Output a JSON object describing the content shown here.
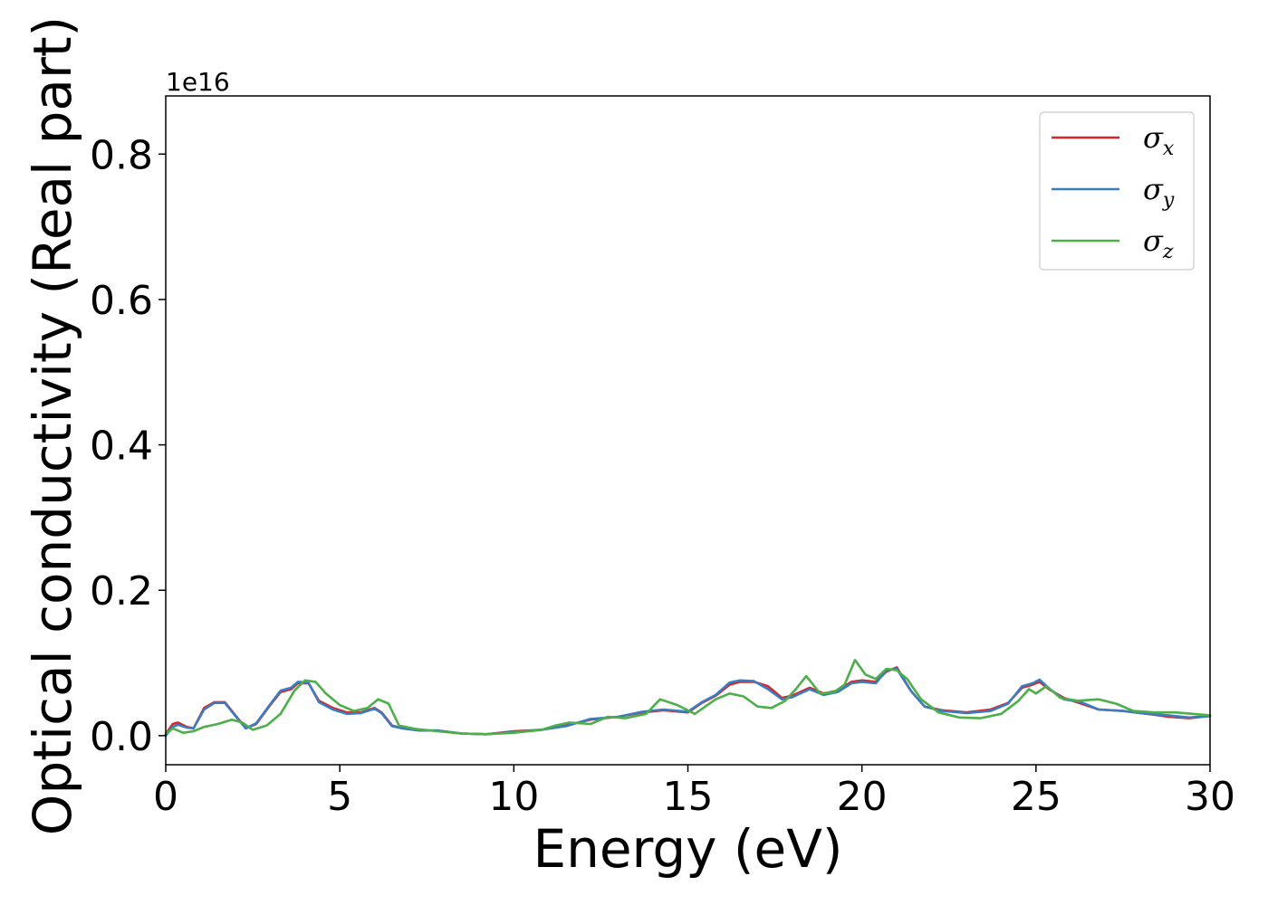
{
  "chart_data": {
    "type": "line",
    "title": "",
    "xlabel": "Energy (eV)",
    "ylabel": "Optical conductivity (Real part)",
    "y_offset_label": "1e16",
    "xlim": [
      0,
      30
    ],
    "ylim": [
      -0.04,
      0.88
    ],
    "x_ticks": [
      0,
      5,
      10,
      15,
      20,
      25,
      30
    ],
    "x_tick_labels": [
      "0",
      "5",
      "10",
      "15",
      "20",
      "25",
      "30"
    ],
    "y_ticks": [
      0.0,
      0.2,
      0.4,
      0.6,
      0.8
    ],
    "y_tick_labels": [
      "0.0",
      "0.2",
      "0.4",
      "0.6",
      "0.8"
    ],
    "grid": false,
    "legend_position": "top-right",
    "series": [
      {
        "name": "σx",
        "legend_base": "σ",
        "legend_sub": "x",
        "color": "#d62728",
        "x": [
          0,
          0.2,
          0.35,
          0.6,
          0.8,
          1.1,
          1.4,
          1.7,
          2.0,
          2.3,
          2.6,
          3.0,
          3.3,
          3.6,
          3.8,
          4.1,
          4.4,
          4.8,
          5.2,
          5.6,
          6.0,
          6.2,
          6.5,
          6.8,
          7.3,
          7.8,
          8.5,
          9.2,
          10.0,
          10.8,
          11.5,
          12.2,
          13.0,
          13.7,
          14.3,
          15.0,
          15.4,
          15.8,
          16.2,
          16.5,
          16.9,
          17.3,
          17.7,
          18.0,
          18.5,
          18.9,
          19.3,
          19.7,
          20.0,
          20.4,
          20.7,
          21.0,
          21.4,
          21.8,
          22.3,
          23.0,
          23.7,
          24.2,
          24.6,
          24.9,
          25.1,
          25.4,
          25.8,
          26.3,
          26.8,
          27.5,
          28.2,
          28.8,
          29.4,
          30.0
        ],
        "y": [
          0.002,
          0.016,
          0.018,
          0.012,
          0.01,
          0.038,
          0.046,
          0.046,
          0.028,
          0.01,
          0.016,
          0.042,
          0.06,
          0.064,
          0.072,
          0.072,
          0.048,
          0.038,
          0.032,
          0.032,
          0.038,
          0.032,
          0.014,
          0.01,
          0.007,
          0.007,
          0.003,
          0.002,
          0.006,
          0.008,
          0.014,
          0.022,
          0.026,
          0.032,
          0.035,
          0.032,
          0.045,
          0.055,
          0.07,
          0.074,
          0.074,
          0.068,
          0.052,
          0.055,
          0.066,
          0.058,
          0.062,
          0.074,
          0.076,
          0.074,
          0.088,
          0.094,
          0.062,
          0.04,
          0.035,
          0.032,
          0.036,
          0.045,
          0.066,
          0.07,
          0.074,
          0.063,
          0.052,
          0.044,
          0.036,
          0.034,
          0.03,
          0.026,
          0.024,
          0.027
        ]
      },
      {
        "name": "σy",
        "legend_base": "σ",
        "legend_sub": "y",
        "color": "#3a7dc0",
        "x": [
          0,
          0.2,
          0.35,
          0.6,
          0.8,
          1.1,
          1.4,
          1.7,
          2.0,
          2.3,
          2.6,
          3.0,
          3.3,
          3.6,
          3.8,
          4.1,
          4.4,
          4.8,
          5.2,
          5.6,
          6.0,
          6.2,
          6.5,
          6.8,
          7.3,
          7.8,
          8.5,
          9.2,
          10.0,
          10.8,
          11.5,
          12.2,
          13.0,
          13.7,
          14.3,
          15.0,
          15.4,
          15.8,
          16.2,
          16.5,
          16.9,
          17.3,
          17.7,
          18.0,
          18.5,
          18.9,
          19.3,
          19.7,
          20.0,
          20.4,
          20.7,
          21.0,
          21.4,
          21.8,
          22.3,
          23.0,
          23.7,
          24.2,
          24.6,
          24.9,
          25.1,
          25.4,
          25.8,
          26.3,
          26.8,
          27.5,
          28.2,
          28.8,
          29.4,
          30.0
        ],
        "y": [
          0.0,
          0.012,
          0.015,
          0.011,
          0.01,
          0.036,
          0.045,
          0.045,
          0.027,
          0.01,
          0.017,
          0.043,
          0.062,
          0.066,
          0.074,
          0.073,
          0.046,
          0.036,
          0.03,
          0.031,
          0.037,
          0.031,
          0.013,
          0.01,
          0.007,
          0.007,
          0.003,
          0.002,
          0.005,
          0.008,
          0.013,
          0.023,
          0.026,
          0.033,
          0.036,
          0.033,
          0.046,
          0.056,
          0.073,
          0.076,
          0.075,
          0.064,
          0.05,
          0.053,
          0.064,
          0.056,
          0.06,
          0.072,
          0.074,
          0.072,
          0.09,
          0.092,
          0.062,
          0.04,
          0.034,
          0.031,
          0.034,
          0.044,
          0.068,
          0.072,
          0.077,
          0.064,
          0.05,
          0.046,
          0.036,
          0.034,
          0.03,
          0.028,
          0.025,
          0.027
        ]
      },
      {
        "name": "σz",
        "legend_base": "σ",
        "legend_sub": "z",
        "color": "#4daf4a",
        "x": [
          0,
          0.2,
          0.5,
          0.8,
          1.1,
          1.5,
          1.9,
          2.2,
          2.5,
          2.9,
          3.3,
          3.7,
          4.0,
          4.3,
          4.6,
          5.0,
          5.4,
          5.8,
          6.1,
          6.4,
          6.7,
          7.2,
          7.8,
          8.5,
          9.2,
          10.0,
          10.8,
          11.2,
          11.6,
          12.2,
          12.7,
          13.2,
          13.8,
          14.2,
          14.7,
          15.2,
          15.8,
          16.2,
          16.6,
          17.0,
          17.4,
          17.8,
          18.1,
          18.4,
          18.8,
          19.2,
          19.5,
          19.8,
          20.1,
          20.4,
          20.7,
          21.0,
          21.3,
          21.7,
          22.2,
          22.8,
          23.4,
          24.0,
          24.5,
          24.8,
          25.0,
          25.3,
          25.7,
          26.2,
          26.8,
          27.3,
          27.8,
          28.4,
          29.0,
          29.5,
          30.0
        ],
        "y": [
          0.002,
          0.01,
          0.004,
          0.006,
          0.012,
          0.016,
          0.022,
          0.018,
          0.008,
          0.014,
          0.03,
          0.062,
          0.076,
          0.074,
          0.058,
          0.042,
          0.034,
          0.038,
          0.05,
          0.044,
          0.014,
          0.009,
          0.006,
          0.003,
          0.002,
          0.004,
          0.008,
          0.014,
          0.018,
          0.016,
          0.026,
          0.024,
          0.03,
          0.05,
          0.042,
          0.03,
          0.05,
          0.058,
          0.054,
          0.04,
          0.038,
          0.048,
          0.064,
          0.082,
          0.058,
          0.06,
          0.07,
          0.104,
          0.084,
          0.078,
          0.092,
          0.09,
          0.078,
          0.05,
          0.032,
          0.025,
          0.024,
          0.03,
          0.048,
          0.064,
          0.058,
          0.068,
          0.052,
          0.048,
          0.05,
          0.044,
          0.034,
          0.032,
          0.032,
          0.03,
          0.028
        ]
      }
    ]
  }
}
